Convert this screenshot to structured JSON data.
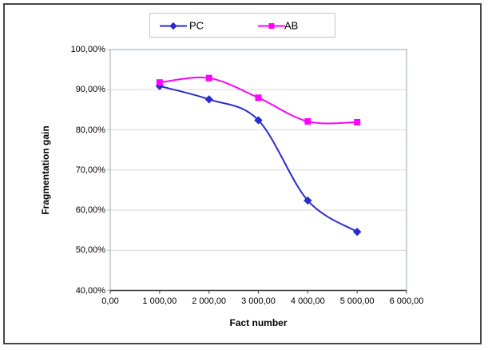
{
  "chart_data": {
    "type": "line",
    "smoothed": true,
    "title": "",
    "xlabel": "Fact number",
    "ylabel": "Fragmentation gain",
    "x": [
      1000,
      2000,
      3000,
      4000,
      5000
    ],
    "series": [
      {
        "name": "PC",
        "color": "#2b2bd0",
        "marker": "diamond",
        "values": [
          90.9,
          87.6,
          82.4,
          62.4,
          54.6
        ]
      },
      {
        "name": "AB",
        "color": "#ff00ff",
        "marker": "square",
        "values": [
          91.8,
          92.9,
          88.0,
          82.1,
          81.9
        ]
      }
    ],
    "xlim": [
      0,
      6000
    ],
    "ylim": [
      40,
      100
    ],
    "xtick_labels": [
      "0,00",
      "1 000,00",
      "2 000,00",
      "3 000,00",
      "4 000,00",
      "5 000,00",
      "6 000,00"
    ],
    "ytick_labels": [
      "100,00%",
      "90,00%",
      "80,00%",
      "70,00%",
      "60,00%",
      "50,00%",
      "40,00%"
    ],
    "grid": "horizontal",
    "legend_position": "top"
  },
  "colors": {
    "gridline": "#d7d7d7",
    "plot_border": "#a6b6be",
    "x_axis_line": "#3f3f3f",
    "y_tick": "#b4bfc6",
    "x_tick": "#3f3f3f"
  }
}
